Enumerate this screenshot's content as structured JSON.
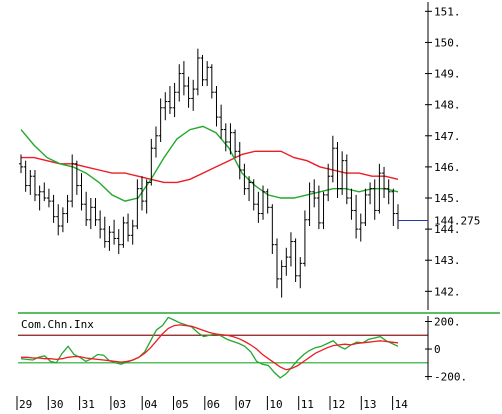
{
  "chart_data": [
    {
      "type": "ohlc",
      "panel": "price",
      "title": "",
      "ylim": [
        141.4,
        151.3
      ],
      "yticks": [
        142,
        143,
        144,
        145,
        146,
        147,
        148,
        149,
        150,
        151
      ],
      "ytick_labels": [
        "142.",
        "143.",
        "144.",
        "145.",
        "146.",
        "147.",
        "148.",
        "149.",
        "150.",
        "151."
      ],
      "last_price": 144.275,
      "last_price_label": "144.275",
      "x_labels": [
        "29",
        "30",
        "31",
        "03",
        "04",
        "05",
        "06",
        "07",
        "10",
        "11",
        "12",
        "13",
        "14"
      ],
      "grid": false,
      "bars": [
        [
          146.1,
          146.4,
          145.8,
          146.0
        ],
        [
          146.0,
          146.2,
          145.2,
          145.4
        ],
        [
          145.4,
          145.9,
          145.1,
          145.7
        ],
        [
          145.7,
          145.9,
          144.9,
          145.1
        ],
        [
          145.1,
          145.4,
          144.6,
          145.2
        ],
        [
          145.2,
          145.5,
          144.9,
          145.0
        ],
        [
          145.0,
          145.3,
          144.7,
          144.9
        ],
        [
          144.9,
          145.1,
          144.2,
          144.4
        ],
        [
          144.4,
          144.8,
          143.8,
          144.1
        ],
        [
          144.1,
          144.7,
          143.9,
          144.5
        ],
        [
          144.5,
          145.1,
          144.2,
          144.9
        ],
        [
          144.9,
          146.4,
          144.7,
          146.1
        ],
        [
          146.1,
          146.2,
          145.1,
          145.4
        ],
        [
          145.4,
          145.8,
          144.6,
          144.8
        ],
        [
          144.8,
          145.2,
          144.1,
          144.3
        ],
        [
          144.3,
          145.0,
          144.0,
          144.7
        ],
        [
          144.7,
          145.0,
          144.1,
          144.3
        ],
        [
          144.3,
          144.6,
          143.7,
          144.0
        ],
        [
          144.0,
          144.4,
          143.4,
          143.6
        ],
        [
          143.6,
          144.1,
          143.3,
          143.9
        ],
        [
          143.9,
          144.3,
          143.5,
          143.7
        ],
        [
          143.7,
          144.0,
          143.2,
          143.5
        ],
        [
          143.5,
          144.4,
          143.4,
          144.2
        ],
        [
          144.2,
          144.5,
          143.6,
          143.8
        ],
        [
          143.8,
          144.3,
          143.5,
          144.1
        ],
        [
          144.1,
          145.6,
          144.0,
          145.3
        ],
        [
          145.3,
          145.7,
          144.6,
          144.9
        ],
        [
          144.9,
          145.6,
          144.5,
          145.5
        ],
        [
          145.5,
          146.9,
          145.4,
          146.6
        ],
        [
          146.6,
          147.3,
          146.3,
          147.0
        ],
        [
          147.0,
          148.2,
          146.8,
          147.9
        ],
        [
          147.9,
          148.4,
          147.5,
          148.1
        ],
        [
          148.1,
          148.6,
          147.7,
          147.9
        ],
        [
          147.9,
          148.7,
          147.6,
          148.4
        ],
        [
          148.4,
          149.3,
          148.1,
          149.0
        ],
        [
          149.0,
          149.4,
          148.3,
          148.6
        ],
        [
          148.6,
          148.9,
          147.9,
          148.2
        ],
        [
          148.2,
          148.8,
          147.8,
          148.5
        ],
        [
          148.5,
          149.8,
          148.3,
          149.5
        ],
        [
          149.5,
          149.6,
          148.6,
          148.8
        ],
        [
          148.8,
          149.4,
          148.6,
          149.2
        ],
        [
          149.2,
          149.3,
          148.2,
          148.4
        ],
        [
          148.4,
          148.6,
          147.3,
          147.6
        ],
        [
          147.6,
          148.0,
          146.9,
          147.2
        ],
        [
          147.2,
          147.4,
          146.5,
          146.8
        ],
        [
          146.8,
          147.4,
          146.4,
          147.1
        ],
        [
          147.1,
          147.2,
          146.3,
          146.5
        ],
        [
          146.5,
          146.8,
          145.6,
          145.9
        ],
        [
          145.9,
          146.1,
          145.1,
          145.3
        ],
        [
          145.3,
          145.7,
          144.9,
          145.5
        ],
        [
          145.5,
          145.6,
          144.6,
          144.8
        ],
        [
          144.8,
          145.2,
          144.2,
          144.5
        ],
        [
          144.5,
          145.4,
          144.3,
          145.2
        ],
        [
          145.2,
          145.3,
          144.5,
          144.7
        ],
        [
          144.7,
          144.8,
          143.2,
          143.5
        ],
        [
          143.5,
          143.7,
          142.1,
          142.4
        ],
        [
          142.4,
          143.0,
          141.8,
          142.8
        ],
        [
          142.8,
          143.4,
          142.5,
          143.1
        ],
        [
          143.1,
          143.9,
          142.8,
          143.6
        ],
        [
          143.6,
          143.7,
          142.3,
          142.5
        ],
        [
          142.5,
          143.1,
          142.1,
          142.9
        ],
        [
          142.9,
          144.6,
          142.8,
          144.3
        ],
        [
          144.3,
          145.5,
          144.1,
          145.2
        ],
        [
          145.2,
          145.6,
          144.7,
          145.0
        ],
        [
          145.0,
          145.4,
          144.0,
          144.2
        ],
        [
          144.2,
          145.2,
          144.0,
          145.1
        ],
        [
          145.1,
          146.1,
          144.9,
          145.7
        ],
        [
          145.7,
          147.0,
          145.5,
          146.6
        ],
        [
          146.6,
          146.8,
          145.0,
          145.3
        ],
        [
          145.3,
          146.5,
          145.1,
          146.2
        ],
        [
          146.2,
          146.4,
          144.8,
          145.0
        ],
        [
          145.0,
          145.3,
          144.3,
          144.6
        ],
        [
          144.6,
          145.1,
          143.7,
          144.0
        ],
        [
          144.0,
          144.5,
          143.6,
          144.2
        ],
        [
          144.2,
          145.3,
          144.1,
          145.1
        ],
        [
          145.1,
          145.5,
          144.8,
          145.3
        ],
        [
          145.3,
          145.6,
          144.3,
          144.6
        ],
        [
          144.6,
          146.1,
          144.5,
          145.8
        ],
        [
          145.8,
          146.0,
          145.0,
          145.3
        ],
        [
          145.3,
          145.6,
          144.8,
          145.2
        ],
        [
          145.2,
          145.3,
          144.1,
          144.5
        ],
        [
          144.5,
          144.8,
          144.0,
          144.275
        ]
      ],
      "moving_averages": [
        {
          "color": "#ee1c24",
          "values": [
            146.3,
            146.3,
            146.2,
            146.1,
            146.1,
            146.0,
            145.9,
            145.8,
            145.8,
            145.7,
            145.6,
            145.5,
            145.5,
            145.6,
            145.8,
            146.0,
            146.2,
            146.4,
            146.5,
            146.5,
            146.5,
            146.3,
            146.2,
            146.0,
            145.9,
            145.8,
            145.8,
            145.7,
            145.7,
            145.6
          ]
        },
        {
          "color": "#22a82e",
          "values": [
            147.2,
            146.7,
            146.3,
            146.1,
            146.0,
            145.8,
            145.5,
            145.1,
            144.9,
            145.0,
            145.6,
            146.3,
            146.9,
            147.2,
            147.3,
            147.1,
            146.6,
            145.8,
            145.4,
            145.1,
            145.0,
            145.0,
            145.1,
            145.2,
            145.3,
            145.3,
            145.2,
            145.3,
            145.3,
            145.2
          ]
        }
      ]
    },
    {
      "type": "line",
      "panel": "oscillator",
      "title": "Com.Chn.Inx",
      "ylim": [
        -225,
        240
      ],
      "yticks": [
        200,
        0,
        -200
      ],
      "ytick_labels": [
        "200.",
        "0",
        "-200."
      ],
      "reference_lines": [
        {
          "value": 100,
          "color": "#8b1a1a"
        },
        {
          "value": -100,
          "color": "#22a82e"
        }
      ],
      "series": [
        {
          "color": "#22a82e",
          "values": [
            -70,
            -75,
            -80,
            -60,
            -50,
            -90,
            -100,
            -30,
            20,
            -40,
            -60,
            -90,
            -70,
            -40,
            -45,
            -85,
            -100,
            -110,
            -95,
            -80,
            -60,
            -20,
            60,
            140,
            170,
            230,
            210,
            190,
            175,
            160,
            120,
            90,
            100,
            110,
            95,
            70,
            55,
            40,
            20,
            -20,
            -90,
            -110,
            -120,
            -170,
            -210,
            -180,
            -130,
            -80,
            -40,
            -10,
            10,
            20,
            40,
            60,
            20,
            0,
            30,
            50,
            45,
            70,
            80,
            90,
            60,
            40,
            20
          ]
        },
        {
          "color": "#ee1c24",
          "values": [
            -60,
            -60,
            -65,
            -65,
            -70,
            -70,
            -75,
            -70,
            -60,
            -55,
            -55,
            -65,
            -70,
            -75,
            -80,
            -85,
            -90,
            -95,
            -90,
            -80,
            -60,
            -30,
            10,
            60,
            110,
            150,
            170,
            175,
            170,
            165,
            150,
            135,
            120,
            110,
            105,
            100,
            90,
            75,
            55,
            30,
            0,
            -40,
            -70,
            -100,
            -130,
            -150,
            -140,
            -120,
            -90,
            -60,
            -30,
            -10,
            10,
            25,
            30,
            35,
            30,
            40,
            45,
            50,
            55,
            60,
            55,
            50,
            45
          ]
        }
      ]
    }
  ]
}
